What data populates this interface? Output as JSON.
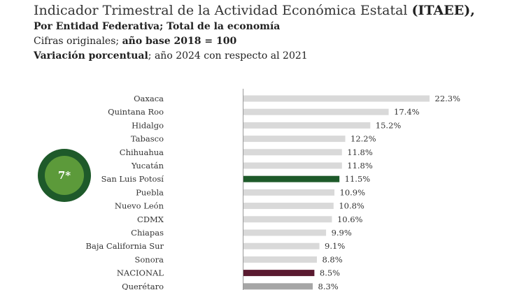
{
  "header": {
    "title_main": "Indicador Trimestral de la Actividad Económica Estatal ",
    "title_bold": "(ITAEE),",
    "line2": "Por Entidad Federativa; Total de la economía",
    "line3_a": "Cifras originales; ",
    "line3_b": "año base 2018 = 100",
    "line4_a": "Variación porcentual",
    "line4_b": "; año 2024 con respecto al 2021"
  },
  "badge": {
    "label": "7*"
  },
  "colors": {
    "default_bar": "#d9d9d9",
    "highlight": "#1e5a2a",
    "national": "#5a1a30",
    "last": "#a6a6a6"
  },
  "chart_data": {
    "type": "bar",
    "orientation": "horizontal",
    "unit_suffix": "%",
    "categories": [
      "Oaxaca",
      "Quintana Roo",
      "Hidalgo",
      "Tabasco",
      "Chihuahua",
      "Yucatán",
      "San Luis Potosí",
      "Puebla",
      "Nuevo León",
      "CDMX",
      "Chiapas",
      "Baja California Sur",
      "Sonora",
      "NACIONAL",
      "Querétaro"
    ],
    "values": [
      22.3,
      17.4,
      15.2,
      12.2,
      11.8,
      11.8,
      11.5,
      10.9,
      10.8,
      10.6,
      9.9,
      9.1,
      8.8,
      8.5,
      8.3
    ],
    "labels": [
      "22.3%",
      "17.4%",
      "15.2%",
      "12.2%",
      "11.8%",
      "11.8%",
      "11.5%",
      "10.9%",
      "10.8%",
      "10.6%",
      "9.9%",
      "9.1%",
      "8.8%",
      "8.5%",
      "8.3%"
    ],
    "bar_style": [
      "default",
      "default",
      "default",
      "default",
      "default",
      "default",
      "highlight",
      "default",
      "default",
      "default",
      "default",
      "default",
      "default",
      "national",
      "last"
    ],
    "xlim": [
      0,
      22.3
    ]
  }
}
